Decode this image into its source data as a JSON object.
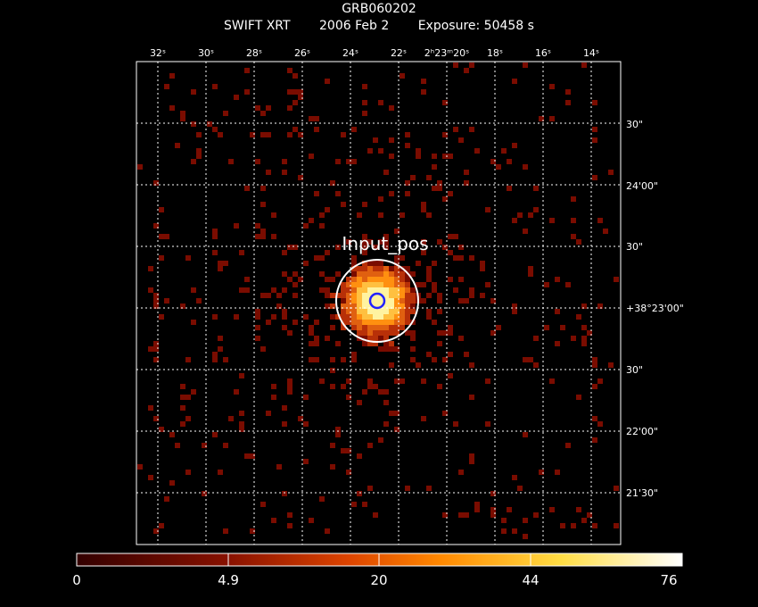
{
  "header": {
    "object": "GRB060202",
    "instrument": "SWIFT XRT",
    "date": "2006 Feb  2",
    "exposure": "Exposure: 50458 s"
  },
  "ra_labels": [
    "32ˢ",
    "30ˢ",
    "28ˢ",
    "26ˢ",
    "24ˢ",
    "22ˢ",
    "2ʰ23ᵐ20ˢ",
    "18ˢ",
    "16ˢ",
    "14ˢ"
  ],
  "dec_labels": [
    "30\"",
    "24'00\"",
    "30\"",
    "+38°23'00\"",
    "30\"",
    "22'00\"",
    "21'30\""
  ],
  "region": {
    "label": "Input_pos"
  },
  "colorbar": {
    "ticks": [
      "0",
      "4.9",
      "20",
      "44",
      "76"
    ],
    "colors": [
      "#330000",
      "#881100",
      "#dd4400",
      "#ff8800",
      "#ffdd44",
      "#ffffff"
    ]
  },
  "colors": {
    "background": "#000000",
    "grid": "#ffffff",
    "region_circle": "#ffffff",
    "source_marker": "#2222ff"
  }
}
